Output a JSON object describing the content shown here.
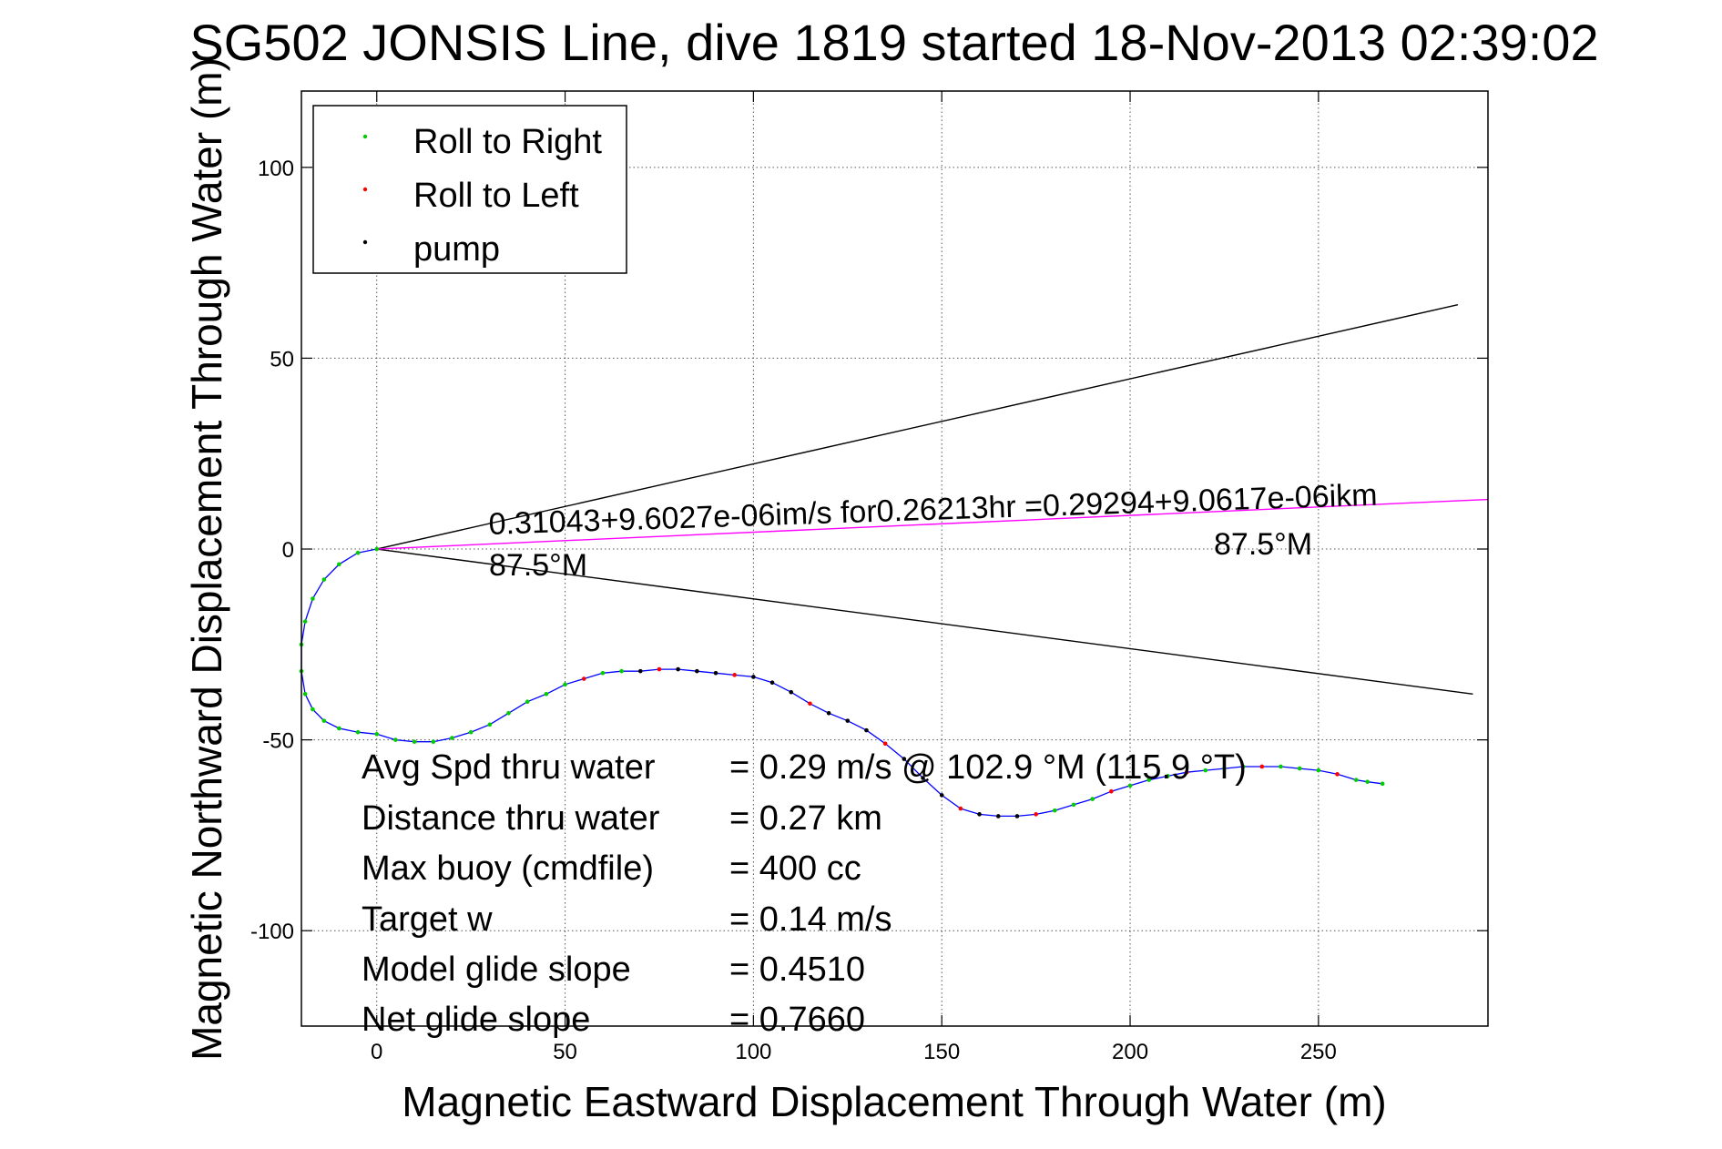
{
  "chart_data": {
    "type": "scatter",
    "title": "SG502 JONSIS Line, dive 1819 started 18-Nov-2013 02:39:02",
    "xlabel": "Magnetic Eastward Displacement Through Water (m)",
    "ylabel": "Magnetic Northward Displacement Through Water (m)",
    "xlim": [
      -20,
      295
    ],
    "ylim": [
      -125,
      120
    ],
    "xticks": [
      0,
      50,
      100,
      150,
      200,
      250
    ],
    "yticks": [
      100,
      50,
      0,
      -50,
      -100
    ],
    "grid": true,
    "legend": {
      "position": "top-left",
      "entries": [
        {
          "label": "Roll to Right",
          "color": "#00cc00"
        },
        {
          "label": "Roll to Left",
          "color": "#ff0000"
        },
        {
          "label": "pump",
          "color": "#000000"
        }
      ]
    },
    "colors": {
      "track": "#0000ff",
      "wedge": "#000000",
      "heading_line": "#ff00ff"
    },
    "track": {
      "x": [
        0,
        -5,
        -10,
        -14,
        -17,
        -19,
        -20,
        -20,
        -19,
        -17,
        -14,
        -10,
        -5,
        0,
        5,
        10,
        15,
        20,
        25,
        30,
        35,
        40,
        45,
        50,
        55,
        60,
        65,
        70,
        75,
        80,
        85,
        90,
        95,
        100,
        105,
        110,
        115,
        120,
        125,
        130,
        135,
        140,
        145,
        150,
        155,
        160,
        165,
        170,
        175,
        180,
        185,
        190,
        195,
        200,
        205,
        210,
        215,
        220,
        225,
        230,
        235,
        240,
        245,
        250,
        255,
        260,
        263,
        267
      ],
      "y": [
        0,
        -1,
        -4,
        -8,
        -13,
        -19,
        -25,
        -32,
        -38,
        -42,
        -45,
        -47,
        -48,
        -48.5,
        -50,
        -50.5,
        -50.5,
        -49.5,
        -48,
        -46,
        -43,
        -40,
        -38,
        -35.5,
        -34,
        -32.5,
        -32,
        -32,
        -31.5,
        -31.5,
        -32,
        -32.5,
        -33,
        -33.5,
        -35,
        -37.5,
        -40.5,
        -43,
        -45,
        -47.5,
        -51,
        -55,
        -60,
        -64.5,
        -68,
        -69.5,
        -70,
        -70,
        -69.5,
        -68.5,
        -67,
        -65.5,
        -63.5,
        -62,
        -60.5,
        -59.5,
        -58.5,
        -58,
        -57.5,
        -57,
        -57,
        -57,
        -57.5,
        -58,
        -59,
        -60.5,
        -61,
        -61.5
      ]
    },
    "wedge_lines": [
      {
        "x": [
          0,
          287
        ],
        "y": [
          0,
          64
        ]
      },
      {
        "x": [
          0,
          291
        ],
        "y": [
          0,
          -38
        ]
      }
    ],
    "heading_line": {
      "x": [
        0,
        295
      ],
      "y": [
        0,
        13
      ]
    },
    "annotations": {
      "speed_equation": "0.31043+9.6027e-06im/s for0.26213hr =0.29294+9.0617e-06ikm",
      "heading_left": "87.5°M",
      "heading_right": "87.5°M"
    },
    "stats": [
      {
        "label": "Avg Spd thru water",
        "value": "=  0.29 m/s @ 102.9 °M (115.9 °T)"
      },
      {
        "label": "Distance thru water",
        "value": "=  0.27 km"
      },
      {
        "label": "Max buoy (cmdfile)",
        "value": "= 400 cc"
      },
      {
        "label": "Target w",
        "value": "= 0.14 m/s"
      },
      {
        "label": "Model glide slope",
        "value": "= 0.4510"
      },
      {
        "label": "Net glide slope",
        "value": "= 0.7660"
      }
    ]
  }
}
